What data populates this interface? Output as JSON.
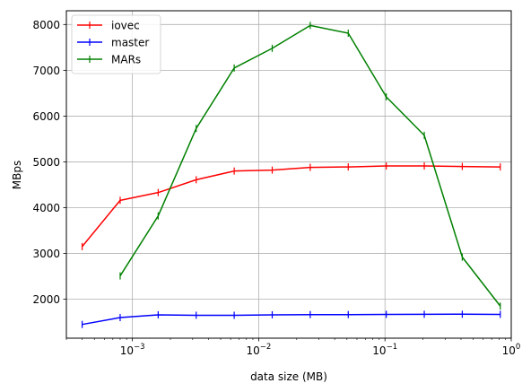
{
  "chart_data": {
    "type": "line",
    "xlabel": "data size (MB)",
    "ylabel": "MBps",
    "xscale": "log",
    "xlim": [
      0.0003,
      1.0
    ],
    "ylim": [
      1150,
      8300
    ],
    "grid": true,
    "legend_position": "top-left",
    "x_ticks": [
      {
        "value": 0.001,
        "base": "10",
        "exp": "−3"
      },
      {
        "value": 0.01,
        "base": "10",
        "exp": "−2"
      },
      {
        "value": 0.1,
        "base": "10",
        "exp": "−1"
      },
      {
        "value": 1,
        "base": "10",
        "exp": "0"
      }
    ],
    "y_ticks": [
      2000,
      3000,
      4000,
      5000,
      6000,
      7000,
      8000
    ],
    "y_tick_labels": [
      "2000",
      "3000",
      "4000",
      "5000",
      "6000",
      "7000",
      "8000"
    ],
    "series": [
      {
        "name": "iovec",
        "color": "#ff0000",
        "x": [
          0.0004,
          0.0008,
          0.0016,
          0.0032,
          0.0064,
          0.0128,
          0.0256,
          0.0512,
          0.1024,
          0.2048,
          0.4096,
          0.8192
        ],
        "y": [
          3150,
          4160,
          4330,
          4610,
          4800,
          4820,
          4880,
          4890,
          4910,
          4910,
          4900,
          4890
        ]
      },
      {
        "name": "master",
        "color": "#0000ff",
        "x": [
          0.0004,
          0.0008,
          0.0016,
          0.0032,
          0.0064,
          0.0128,
          0.0256,
          0.0512,
          0.1024,
          0.2048,
          0.4096,
          0.8192
        ],
        "y": [
          1450,
          1600,
          1660,
          1650,
          1650,
          1660,
          1665,
          1665,
          1670,
          1672,
          1673,
          1670
        ]
      },
      {
        "name": "MARs",
        "color": "#008000",
        "x": [
          0.0008,
          0.0016,
          0.0032,
          0.0064,
          0.0128,
          0.0256,
          0.0512,
          0.1024,
          0.2048,
          0.4096,
          0.8192
        ],
        "y": [
          2510,
          3820,
          5730,
          7050,
          7480,
          7980,
          7810,
          6420,
          5580,
          2920,
          1850
        ]
      }
    ]
  }
}
